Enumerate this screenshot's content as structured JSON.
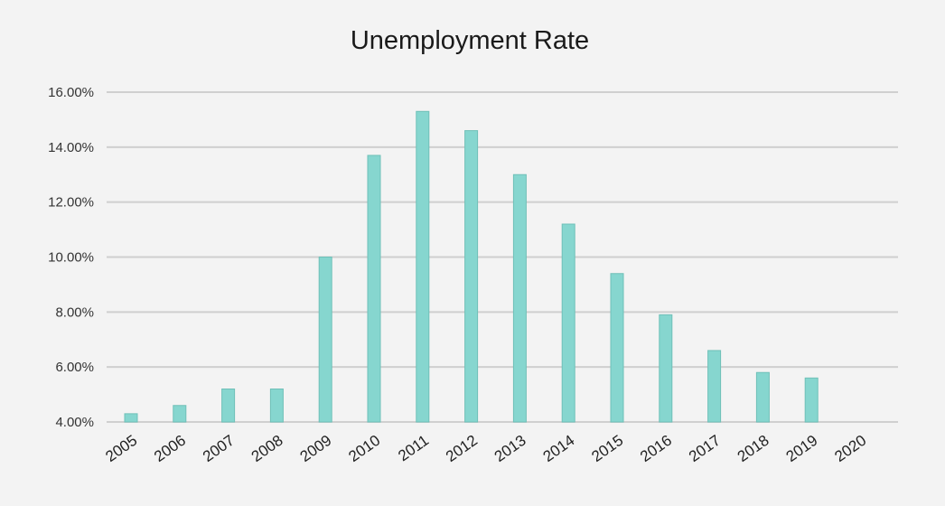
{
  "chart_data": {
    "type": "bar",
    "title": "Unemployment Rate",
    "xlabel": "",
    "ylabel": "",
    "categories": [
      "2005",
      "2006",
      "2007",
      "2008",
      "2009",
      "2010",
      "2011",
      "2012",
      "2013",
      "2014",
      "2015",
      "2016",
      "2017",
      "2018",
      "2019",
      "2020"
    ],
    "values": [
      4.3,
      4.6,
      5.2,
      5.2,
      10.0,
      13.7,
      15.3,
      14.6,
      13.0,
      11.2,
      9.4,
      7.9,
      6.6,
      5.8,
      5.6,
      null
    ],
    "value_unit": "%",
    "ylim": [
      4,
      16
    ],
    "yticks": [
      4,
      6,
      8,
      10,
      12,
      14,
      16
    ],
    "ytick_labels": [
      "4.00%",
      "6.00%",
      "8.00%",
      "10.00%",
      "12.00%",
      "14.00%",
      "16.00%"
    ],
    "grid": true,
    "legend": "none",
    "colors": {
      "bar_fill": "#86d6cf",
      "bar_stroke": "#6fc0b8",
      "gridline": "#cfcfcf",
      "background": "#f3f3f3"
    }
  }
}
